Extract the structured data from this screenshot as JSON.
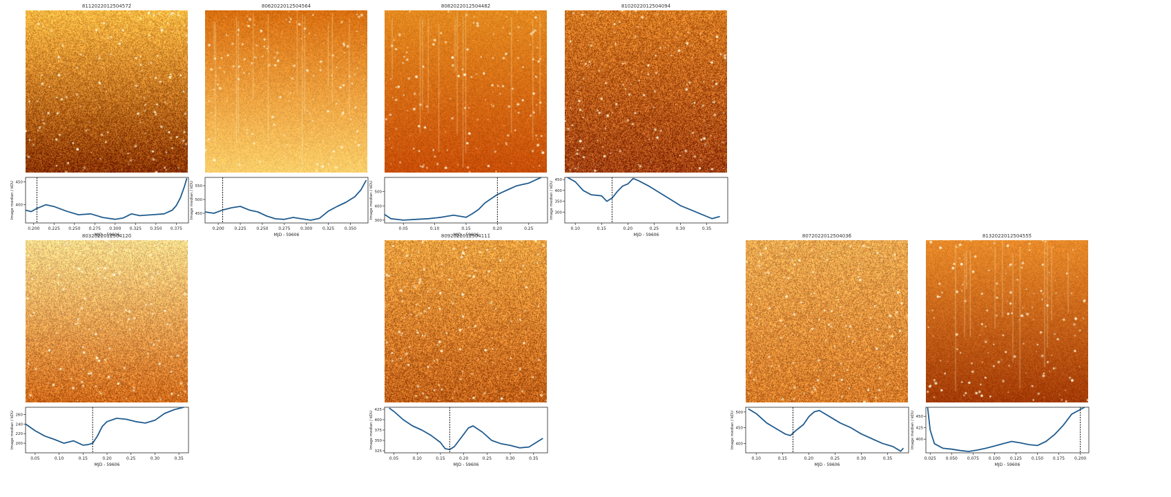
{
  "chart_data": [
    {
      "type": "line",
      "title": "8112022012504572́",
      "xlabel": "MJD - 59606",
      "ylabel": "Image median / kDU",
      "xlim": [
        0.19,
        0.39
      ],
      "ylim": [
        360,
        460
      ],
      "x_ticks": [
        "0.200",
        "0.225",
        "0.250",
        "0.275",
        "0.300",
        "0.325",
        "0.350",
        "0.375"
      ],
      "x_tick_values": [
        0.2,
        0.225,
        0.25,
        0.275,
        0.3,
        0.325,
        0.35,
        0.375
      ],
      "y_ticks": [
        "400",
        "450"
      ],
      "y_tick_values": [
        400,
        450
      ],
      "marker_x": 0.204,
      "series": [
        {
          "x": [
            0.19,
            0.197,
            0.204,
            0.215,
            0.225,
            0.24,
            0.255,
            0.27,
            0.285,
            0.3,
            0.31,
            0.32,
            0.33,
            0.345,
            0.36,
            0.37,
            0.375,
            0.38,
            0.385,
            0.388
          ],
          "y": [
            388,
            385,
            392,
            400,
            396,
            386,
            378,
            380,
            372,
            368,
            371,
            380,
            376,
            378,
            380,
            388,
            398,
            415,
            440,
            458
          ]
        }
      ]
    },
    {
      "type": "line",
      "title": "8062022012504564́",
      "xlabel": "MJD - 59606",
      "ylabel": "Image median / kDU",
      "xlim": [
        0.185,
        0.37
      ],
      "ylim": [
        415,
        580
      ],
      "x_ticks": [
        "0.200",
        "0.225",
        "0.250",
        "0.275",
        "0.300",
        "0.325",
        "0.350"
      ],
      "x_tick_values": [
        0.2,
        0.225,
        0.25,
        0.275,
        0.3,
        0.325,
        0.35
      ],
      "y_ticks": [
        "450",
        "500",
        "550"
      ],
      "y_tick_values": [
        450,
        500,
        550
      ],
      "marker_x": 0.205,
      "series": [
        {
          "x": [
            0.185,
            0.195,
            0.205,
            0.215,
            0.225,
            0.235,
            0.245,
            0.255,
            0.265,
            0.275,
            0.285,
            0.295,
            0.305,
            0.315,
            0.325,
            0.335,
            0.345,
            0.355,
            0.362,
            0.368
          ],
          "y": [
            455,
            450,
            462,
            470,
            475,
            462,
            455,
            440,
            430,
            428,
            435,
            430,
            425,
            432,
            458,
            475,
            490,
            510,
            535,
            570
          ]
        }
      ]
    },
    {
      "type": "line",
      "title": "8082022012504482́",
      "xlabel": "MJD - 59606",
      "ylabel": "Image median / kDU",
      "xlim": [
        0.02,
        0.28
      ],
      "ylim": [
        280,
        600
      ],
      "x_ticks": [
        "0.05",
        "0.10",
        "0.15",
        "0.20",
        "0.25"
      ],
      "x_tick_values": [
        0.05,
        0.1,
        0.15,
        0.2,
        0.25
      ],
      "y_ticks": [
        "300",
        "400",
        "500"
      ],
      "y_tick_values": [
        300,
        400,
        500
      ],
      "marker_x": 0.2,
      "series": [
        {
          "x": [
            0.02,
            0.03,
            0.05,
            0.07,
            0.09,
            0.11,
            0.13,
            0.15,
            0.16,
            0.17,
            0.18,
            0.19,
            0.2,
            0.21,
            0.22,
            0.23,
            0.24,
            0.25,
            0.26,
            0.27
          ],
          "y": [
            340,
            310,
            300,
            305,
            310,
            320,
            335,
            320,
            345,
            375,
            420,
            450,
            480,
            500,
            520,
            540,
            550,
            560,
            580,
            600
          ]
        }
      ]
    },
    {
      "type": "line",
      "title": "8102022012504094́",
      "xlabel": "MJD - 59606",
      "ylabel": "Image median / kDU",
      "xlim": [
        0.08,
        0.39
      ],
      "ylim": [
        250,
        460
      ],
      "x_ticks": [
        "0.10",
        "0.15",
        "0.20",
        "0.25",
        "0.30",
        "0.35"
      ],
      "x_tick_values": [
        0.1,
        0.15,
        0.2,
        0.25,
        0.3,
        0.35
      ],
      "y_ticks": [
        "300",
        "350",
        "400",
        "450"
      ],
      "y_tick_values": [
        300,
        350,
        400,
        450
      ],
      "marker_x": 0.17,
      "series": [
        {
          "x": [
            0.085,
            0.1,
            0.115,
            0.13,
            0.15,
            0.16,
            0.17,
            0.18,
            0.19,
            0.2,
            0.21,
            0.22,
            0.24,
            0.26,
            0.28,
            0.3,
            0.32,
            0.34,
            0.36,
            0.375
          ],
          "y": [
            460,
            440,
            400,
            380,
            375,
            350,
            365,
            395,
            420,
            430,
            455,
            445,
            420,
            390,
            360,
            330,
            310,
            290,
            270,
            280
          ]
        }
      ]
    },
    {
      "type": "line",
      "title": "8032022012504120́",
      "xlabel": "MJD - 59606",
      "ylabel": "Image median / kDU",
      "xlim": [
        0.03,
        0.37
      ],
      "ylim": [
        180,
        275
      ],
      "x_ticks": [
        "0.05",
        "0.10",
        "0.15",
        "0.20",
        "0.25",
        "0.30",
        "0.35"
      ],
      "x_tick_values": [
        0.05,
        0.1,
        0.15,
        0.2,
        0.25,
        0.3,
        0.35
      ],
      "y_ticks": [
        "200",
        "220",
        "240",
        "260"
      ],
      "y_tick_values": [
        200,
        220,
        240,
        260
      ],
      "marker_x": 0.17,
      "series": [
        {
          "x": [
            0.03,
            0.05,
            0.07,
            0.09,
            0.11,
            0.13,
            0.15,
            0.16,
            0.17,
            0.18,
            0.19,
            0.2,
            0.22,
            0.24,
            0.26,
            0.28,
            0.3,
            0.32,
            0.34,
            0.36
          ],
          "y": [
            240,
            226,
            215,
            208,
            200,
            205,
            196,
            197,
            200,
            215,
            235,
            245,
            252,
            250,
            245,
            242,
            248,
            262,
            270,
            275
          ]
        }
      ]
    },
    {
      "type": "line",
      "title": "8092022012504111́",
      "xlabel": "MJD - 59606",
      "ylabel": "Image median / kDU",
      "xlim": [
        0.03,
        0.38
      ],
      "ylim": [
        320,
        430
      ],
      "x_ticks": [
        "0.05",
        "0.10",
        "0.15",
        "0.20",
        "0.25",
        "0.30",
        "0.35"
      ],
      "x_tick_values": [
        0.05,
        0.1,
        0.15,
        0.2,
        0.25,
        0.3,
        0.35
      ],
      "y_ticks": [
        "325",
        "350",
        "375",
        "400",
        "425"
      ],
      "y_tick_values": [
        325,
        350,
        375,
        400,
        425
      ],
      "marker_x": 0.17,
      "series": [
        {
          "x": [
            0.04,
            0.05,
            0.07,
            0.09,
            0.11,
            0.13,
            0.15,
            0.16,
            0.17,
            0.18,
            0.19,
            0.21,
            0.22,
            0.24,
            0.26,
            0.28,
            0.3,
            0.32,
            0.34,
            0.37
          ],
          "y": [
            428,
            420,
            400,
            385,
            375,
            362,
            345,
            330,
            328,
            335,
            350,
            380,
            385,
            370,
            350,
            342,
            338,
            332,
            334,
            355
          ]
        }
      ]
    },
    {
      "type": "line",
      "title": "8072022012504036́",
      "xlabel": "MJD - 59606",
      "ylabel": "Image median / kDU",
      "xlim": [
        0.08,
        0.39
      ],
      "ylim": [
        370,
        515
      ],
      "x_ticks": [
        "0.10",
        "0.15",
        "0.20",
        "0.25",
        "0.30",
        "0.35"
      ],
      "x_tick_values": [
        0.1,
        0.15,
        0.2,
        0.25,
        0.3,
        0.35
      ],
      "y_ticks": [
        "400",
        "450",
        "500"
      ],
      "y_tick_values": [
        400,
        450,
        500
      ],
      "marker_x": 0.17,
      "series": [
        {
          "x": [
            0.085,
            0.1,
            0.12,
            0.14,
            0.155,
            0.165,
            0.175,
            0.19,
            0.2,
            0.21,
            0.22,
            0.24,
            0.26,
            0.28,
            0.3,
            0.32,
            0.34,
            0.36,
            0.375,
            0.38
          ],
          "y": [
            510,
            495,
            465,
            445,
            430,
            425,
            440,
            460,
            485,
            500,
            505,
            485,
            465,
            450,
            430,
            415,
            400,
            390,
            375,
            385
          ]
        }
      ]
    },
    {
      "type": "line",
      "title": "8132022012504555́",
      "xlabel": "MJD - 59606",
      "ylabel": "Image median / kDU",
      "xlim": [
        0.02,
        0.21
      ],
      "ylim": [
        370,
        470
      ],
      "x_ticks": [
        "0.025",
        "0.050",
        "0.075",
        "0.100",
        "0.125",
        "0.150",
        "0.175",
        "0.200"
      ],
      "x_tick_values": [
        0.025,
        0.05,
        0.075,
        0.1,
        0.125,
        0.15,
        0.175,
        0.2
      ],
      "y_ticks": [
        "400",
        "425",
        "450"
      ],
      "y_tick_values": [
        400,
        425,
        450
      ],
      "marker_x": 0.2,
      "series": [
        {
          "x": [
            0.022,
            0.025,
            0.03,
            0.04,
            0.05,
            0.06,
            0.07,
            0.08,
            0.09,
            0.1,
            0.11,
            0.12,
            0.13,
            0.14,
            0.15,
            0.16,
            0.17,
            0.18,
            0.19,
            0.205
          ],
          "y": [
            470,
            420,
            390,
            380,
            378,
            375,
            373,
            376,
            380,
            385,
            390,
            395,
            392,
            388,
            386,
            395,
            410,
            430,
            455,
            470
          ]
        }
      ]
    }
  ],
  "panels": [
    {
      "id": "8112022012504572́"
    },
    {
      "id": "8062022012504564́"
    },
    {
      "id": "8082022012504482́"
    },
    {
      "id": "8102022012504094́"
    },
    {
      "id": "8032022012504120́"
    },
    {
      "id": "8092022012504111́"
    },
    {
      "id": "8072022012504036́"
    },
    {
      "id": "8132022012504555́"
    }
  ],
  "images": [
    {
      "top": "#ffb742",
      "bottom": "#8a3400",
      "grain": 0.9
    },
    {
      "top": "#d96f10",
      "bottom": "#ffcf6a",
      "grain": 0.4
    },
    {
      "top": "#e48a20",
      "bottom": "#c84e08",
      "grain": 0.35
    },
    {
      "top": "#d77a22",
      "bottom": "#a04010",
      "grain": 1.0
    },
    {
      "top": "#ffd98a",
      "bottom": "#cf6a1a",
      "grain": 0.9
    },
    {
      "top": "#f0a040",
      "bottom": "#c06018",
      "grain": 1.0
    },
    {
      "top": "#f0a850",
      "bottom": "#d67a28",
      "grain": 1.0
    },
    {
      "top": "#e98b2a",
      "bottom": "#a33a06",
      "grain": 0.35
    }
  ],
  "line_color": "#1f5b8e"
}
